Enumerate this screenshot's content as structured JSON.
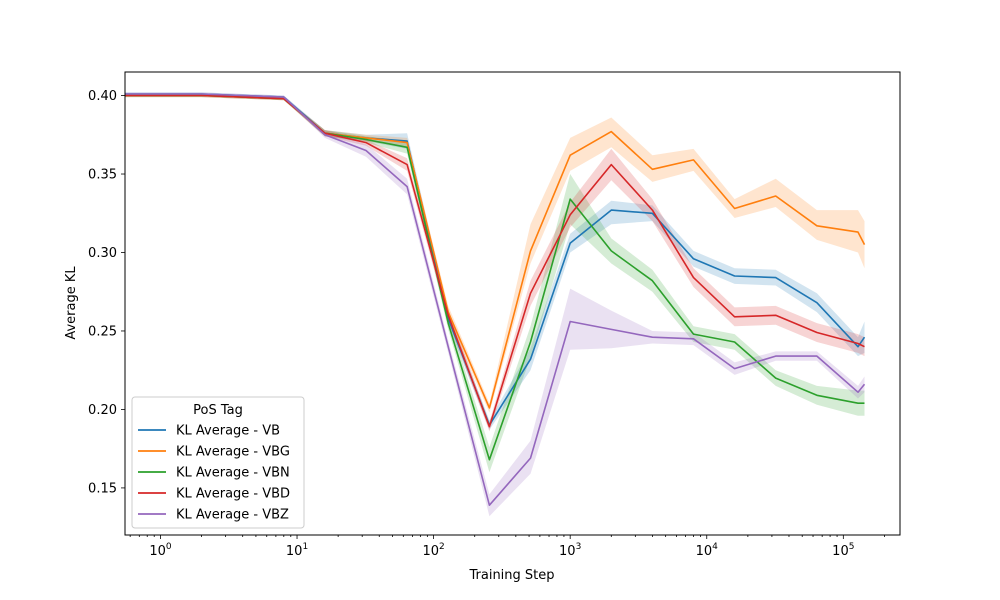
{
  "chart_data": {
    "type": "line",
    "title": "",
    "xlabel": "Training Step",
    "ylabel": "Average KL",
    "xscale": "log",
    "xlim": [
      0.55,
      260000
    ],
    "ylim": [
      0.12,
      0.415
    ],
    "grid": false,
    "x_ticks": [
      {
        "value": 1,
        "base": "10",
        "exp": "0"
      },
      {
        "value": 10,
        "base": "10",
        "exp": "1"
      },
      {
        "value": 100,
        "base": "10",
        "exp": "2"
      },
      {
        "value": 1000,
        "base": "10",
        "exp": "3"
      },
      {
        "value": 10000,
        "base": "10",
        "exp": "4"
      },
      {
        "value": 100000,
        "base": "10",
        "exp": "5"
      }
    ],
    "y_ticks": [
      {
        "value": 0.15,
        "label": "0.15"
      },
      {
        "value": 0.2,
        "label": "0.20"
      },
      {
        "value": 0.25,
        "label": "0.25"
      },
      {
        "value": 0.3,
        "label": "0.30"
      },
      {
        "value": 0.35,
        "label": "0.35"
      },
      {
        "value": 0.4,
        "label": "0.40"
      }
    ],
    "legend": {
      "title": "PoS Tag",
      "position": "lower-left"
    },
    "x": [
      0,
      1,
      2,
      4,
      8,
      16,
      32,
      64,
      128,
      256,
      512,
      1000,
      2000,
      4000,
      8000,
      16000,
      32000,
      64000,
      128000,
      143000
    ],
    "series": [
      {
        "name": "KL Average - VB",
        "color": "#1f77b4",
        "values": [
          0.401,
          0.401,
          0.401,
          0.4,
          0.399,
          0.376,
          0.373,
          0.371,
          0.258,
          0.19,
          0.232,
          0.306,
          0.327,
          0.325,
          0.296,
          0.285,
          0.284,
          0.268,
          0.24,
          0.246
        ],
        "lower": [
          0.4,
          0.4,
          0.4,
          0.399,
          0.398,
          0.374,
          0.371,
          0.366,
          0.254,
          0.187,
          0.225,
          0.3,
          0.318,
          0.32,
          0.291,
          0.28,
          0.279,
          0.262,
          0.234,
          0.236
        ],
        "upper": [
          0.402,
          0.402,
          0.402,
          0.401,
          0.4,
          0.378,
          0.375,
          0.376,
          0.262,
          0.193,
          0.239,
          0.312,
          0.333,
          0.33,
          0.301,
          0.29,
          0.289,
          0.274,
          0.246,
          0.256
        ]
      },
      {
        "name": "KL Average - VBG",
        "color": "#ff7f0e",
        "values": [
          0.4,
          0.4,
          0.4,
          0.399,
          0.398,
          0.376,
          0.373,
          0.37,
          0.262,
          0.201,
          0.301,
          0.362,
          0.377,
          0.353,
          0.359,
          0.328,
          0.336,
          0.317,
          0.313,
          0.305
        ],
        "lower": [
          0.399,
          0.399,
          0.399,
          0.398,
          0.397,
          0.374,
          0.371,
          0.367,
          0.258,
          0.198,
          0.293,
          0.352,
          0.367,
          0.345,
          0.352,
          0.322,
          0.329,
          0.308,
          0.3,
          0.29
        ],
        "upper": [
          0.401,
          0.401,
          0.401,
          0.4,
          0.399,
          0.378,
          0.375,
          0.373,
          0.266,
          0.204,
          0.318,
          0.373,
          0.386,
          0.362,
          0.366,
          0.334,
          0.347,
          0.327,
          0.327,
          0.32
        ]
      },
      {
        "name": "KL Average - VBN",
        "color": "#2ca02c",
        "values": [
          0.4,
          0.4,
          0.4,
          0.399,
          0.398,
          0.376,
          0.372,
          0.367,
          0.255,
          0.168,
          0.243,
          0.334,
          0.301,
          0.282,
          0.248,
          0.243,
          0.22,
          0.209,
          0.204,
          0.204
        ],
        "lower": [
          0.399,
          0.399,
          0.399,
          0.398,
          0.397,
          0.374,
          0.37,
          0.363,
          0.251,
          0.16,
          0.233,
          0.318,
          0.293,
          0.275,
          0.243,
          0.238,
          0.215,
          0.203,
          0.196,
          0.196
        ],
        "upper": [
          0.401,
          0.401,
          0.401,
          0.4,
          0.399,
          0.378,
          0.374,
          0.371,
          0.259,
          0.176,
          0.253,
          0.35,
          0.309,
          0.289,
          0.253,
          0.248,
          0.225,
          0.215,
          0.212,
          0.212
        ]
      },
      {
        "name": "KL Average - VBD",
        "color": "#d62728",
        "values": [
          0.4,
          0.4,
          0.4,
          0.399,
          0.398,
          0.376,
          0.37,
          0.356,
          0.26,
          0.189,
          0.274,
          0.324,
          0.356,
          0.327,
          0.284,
          0.259,
          0.26,
          0.249,
          0.242,
          0.24
        ],
        "lower": [
          0.399,
          0.399,
          0.399,
          0.398,
          0.397,
          0.374,
          0.368,
          0.352,
          0.256,
          0.186,
          0.266,
          0.316,
          0.346,
          0.32,
          0.278,
          0.253,
          0.254,
          0.243,
          0.236,
          0.234
        ],
        "upper": [
          0.401,
          0.401,
          0.401,
          0.4,
          0.399,
          0.378,
          0.372,
          0.36,
          0.264,
          0.192,
          0.282,
          0.332,
          0.366,
          0.334,
          0.29,
          0.265,
          0.266,
          0.255,
          0.248,
          0.246
        ]
      },
      {
        "name": "KL Average - VBZ",
        "color": "#9467bd",
        "values": [
          0.401,
          0.401,
          0.401,
          0.4,
          0.399,
          0.375,
          0.365,
          0.342,
          0.24,
          0.139,
          0.169,
          0.256,
          0.251,
          0.246,
          0.245,
          0.226,
          0.234,
          0.234,
          0.211,
          0.216
        ],
        "lower": [
          0.4,
          0.4,
          0.4,
          0.399,
          0.398,
          0.373,
          0.361,
          0.337,
          0.236,
          0.132,
          0.159,
          0.238,
          0.239,
          0.242,
          0.241,
          0.222,
          0.231,
          0.231,
          0.207,
          0.211
        ],
        "upper": [
          0.402,
          0.402,
          0.402,
          0.401,
          0.4,
          0.377,
          0.369,
          0.347,
          0.244,
          0.146,
          0.18,
          0.277,
          0.263,
          0.25,
          0.249,
          0.23,
          0.237,
          0.237,
          0.215,
          0.221
        ]
      }
    ]
  }
}
